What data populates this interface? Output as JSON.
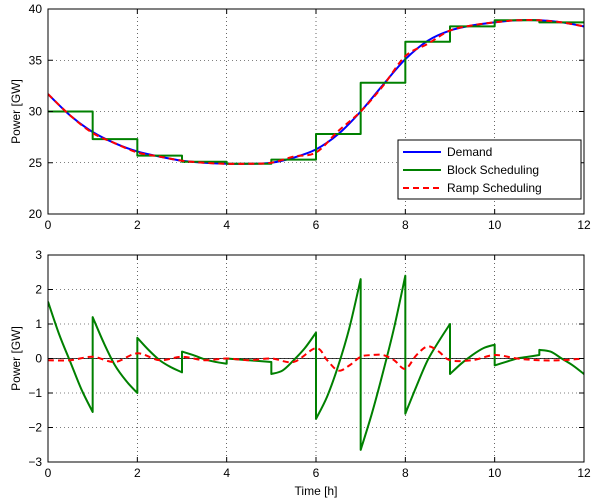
{
  "chart_data": [
    {
      "type": "line",
      "title": "",
      "xlabel": "",
      "ylabel": "Power [GW]",
      "xlim": [
        0,
        12
      ],
      "ylim": [
        20,
        40
      ],
      "xticks": [
        0,
        2,
        4,
        6,
        8,
        10,
        12
      ],
      "yticks": [
        20,
        25,
        30,
        35,
        40
      ],
      "grid": true,
      "legend_position": "bottom-right",
      "series": [
        {
          "name": "Demand",
          "color": "#0000ff",
          "style": "solid",
          "x": [
            0,
            0.5,
            1,
            1.5,
            2,
            2.5,
            3,
            3.5,
            4,
            4.5,
            5,
            5.5,
            6,
            6.5,
            7,
            7.5,
            8,
            8.5,
            9,
            9.5,
            10,
            10.5,
            11,
            11.5,
            12
          ],
          "y": [
            31.7,
            29.6,
            28.0,
            26.9,
            26.1,
            25.6,
            25.2,
            25.0,
            24.9,
            24.9,
            25.0,
            25.5,
            26.3,
            27.8,
            30.0,
            32.6,
            35.1,
            36.9,
            37.9,
            38.4,
            38.7,
            38.9,
            38.9,
            38.7,
            38.3
          ]
        },
        {
          "name": "Block Scheduling",
          "color": "#008000",
          "style": "step",
          "x": [
            0,
            1,
            2,
            3,
            4,
            5,
            6,
            7,
            8,
            9,
            10,
            11,
            12
          ],
          "y": [
            30.0,
            27.3,
            25.7,
            25.1,
            24.9,
            25.3,
            27.8,
            32.8,
            36.8,
            38.3,
            38.9,
            38.7,
            38.7
          ]
        },
        {
          "name": "Ramp Scheduling",
          "color": "#ff0000",
          "style": "dashed",
          "x": [
            0,
            0.5,
            1,
            1.5,
            2,
            2.5,
            3,
            3.5,
            4,
            4.5,
            5,
            5.5,
            6,
            6.5,
            7,
            7.5,
            8,
            8.5,
            9,
            9.5,
            10,
            10.5,
            11,
            11.5,
            12
          ],
          "y": [
            31.7,
            29.6,
            27.9,
            26.9,
            26.0,
            25.6,
            25.2,
            25.0,
            24.9,
            24.9,
            25.0,
            25.6,
            26.0,
            28.1,
            30.0,
            32.5,
            35.4,
            36.6,
            37.9,
            38.4,
            38.7,
            38.9,
            38.9,
            38.7,
            38.3
          ]
        }
      ]
    },
    {
      "type": "line",
      "title": "",
      "xlabel": "Time [h]",
      "ylabel": "Power [GW]",
      "xlim": [
        0,
        12
      ],
      "ylim": [
        -3,
        3
      ],
      "xticks": [
        0,
        2,
        4,
        6,
        8,
        10,
        12
      ],
      "yticks": [
        -3,
        -2,
        -1,
        0,
        1,
        2,
        3
      ],
      "grid": true,
      "series": [
        {
          "name": "Block Scheduling",
          "color": "#008000",
          "style": "solid",
          "segments": [
            {
              "x": [
                0,
                0.25,
                0.5,
                0.75,
                1
              ],
              "y": [
                1.65,
                0.7,
                -0.1,
                -0.9,
                -1.55
              ]
            },
            {
              "x": [
                1,
                1.25,
                1.5,
                1.75,
                2
              ],
              "y": [
                1.2,
                0.45,
                -0.2,
                -0.65,
                -1.0
              ]
            },
            {
              "x": [
                2,
                2.25,
                2.5,
                2.75,
                3
              ],
              "y": [
                0.6,
                0.25,
                -0.05,
                -0.25,
                -0.4
              ]
            },
            {
              "x": [
                3,
                3.25,
                3.5,
                3.75,
                4
              ],
              "y": [
                0.2,
                0.1,
                -0.02,
                -0.1,
                -0.15
              ]
            },
            {
              "x": [
                4,
                4.5,
                5
              ],
              "y": [
                0.0,
                -0.05,
                -0.1
              ]
            },
            {
              "x": [
                5,
                5.25,
                5.5,
                5.75,
                6
              ],
              "y": [
                -0.45,
                -0.35,
                -0.05,
                0.3,
                0.75
              ]
            },
            {
              "x": [
                6,
                6.25,
                6.5,
                6.75,
                7
              ],
              "y": [
                -1.75,
                -1.1,
                -0.2,
                0.9,
                2.3
              ]
            },
            {
              "x": [
                7,
                7.25,
                7.5,
                7.75,
                8
              ],
              "y": [
                -2.65,
                -1.6,
                -0.4,
                0.9,
                2.4
              ]
            },
            {
              "x": [
                8,
                8.25,
                8.5,
                8.75,
                9
              ],
              "y": [
                -1.6,
                -0.8,
                -0.05,
                0.5,
                1.0
              ]
            },
            {
              "x": [
                9,
                9.25,
                9.5,
                9.75,
                10
              ],
              "y": [
                -0.45,
                -0.15,
                0.1,
                0.3,
                0.4
              ]
            },
            {
              "x": [
                10,
                10.25,
                10.5,
                10.75,
                11
              ],
              "y": [
                -0.2,
                -0.1,
                0.0,
                0.05,
                0.1
              ]
            },
            {
              "x": [
                11,
                11.25,
                11.5,
                11.75,
                12
              ],
              "y": [
                0.25,
                0.2,
                0.0,
                -0.2,
                -0.45
              ]
            }
          ]
        },
        {
          "name": "Ramp Scheduling",
          "color": "#ff0000",
          "style": "dashed",
          "x": [
            0,
            0.5,
            1,
            1.5,
            2,
            2.5,
            3,
            3.5,
            4,
            4.5,
            5,
            5.5,
            6,
            6.25,
            6.5,
            6.75,
            7,
            7.25,
            7.5,
            7.75,
            8,
            8.25,
            8.5,
            8.75,
            9,
            9.5,
            10,
            10.5,
            11,
            11.5,
            12
          ],
          "y": [
            -0.05,
            -0.05,
            0.05,
            -0.1,
            0.15,
            -0.05,
            0.05,
            -0.05,
            0.0,
            -0.05,
            0.0,
            -0.1,
            0.3,
            -0.05,
            -0.35,
            -0.2,
            0.05,
            0.1,
            0.1,
            -0.05,
            -0.3,
            0.1,
            0.35,
            0.2,
            -0.05,
            -0.05,
            0.1,
            0.0,
            -0.05,
            -0.05,
            0.0
          ]
        }
      ]
    }
  ]
}
